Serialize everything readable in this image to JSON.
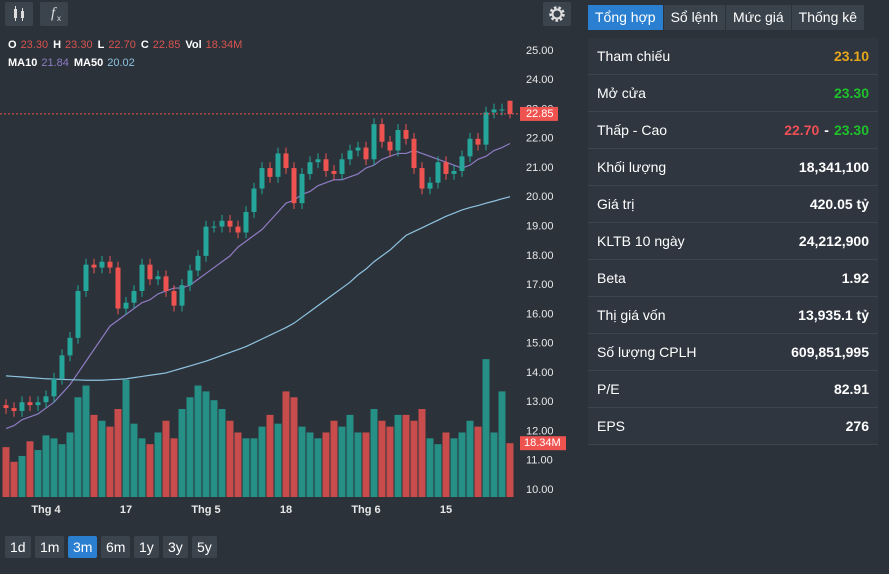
{
  "chart_data": {
    "type": "candlestick",
    "header": [
      {
        "label": "O",
        "value": "23.30"
      },
      {
        "label": "H",
        "value": "23.30"
      },
      {
        "label": "L",
        "value": "22.70"
      },
      {
        "label": "C",
        "value": "22.85"
      },
      {
        "label": "Vol",
        "value": "18.34M"
      }
    ],
    "categories": [
      null,
      null,
      null,
      null,
      null,
      "Thg 4",
      null,
      null,
      null,
      null,
      null,
      null,
      null,
      null,
      null,
      "17",
      null,
      null,
      null,
      null,
      null,
      null,
      null,
      null,
      null,
      "Thg 5",
      null,
      null,
      null,
      null,
      null,
      null,
      null,
      null,
      null,
      "18",
      null,
      null,
      null,
      null,
      null,
      null,
      null,
      null,
      null,
      "Thg 6",
      null,
      null,
      null,
      null,
      null,
      null,
      null,
      null,
      null,
      "15",
      null,
      null,
      null,
      null,
      null,
      null,
      null,
      null
    ],
    "open": [
      12.9,
      12.8,
      12.7,
      13.0,
      12.9,
      13.0,
      13.2,
      13.8,
      14.6,
      15.2,
      16.8,
      17.7,
      17.6,
      17.8,
      17.6,
      16.2,
      16.4,
      16.8,
      17.7,
      17.2,
      17.3,
      16.8,
      16.3,
      17.0,
      17.5,
      18.0,
      19.0,
      19.0,
      19.2,
      19.0,
      18.8,
      19.5,
      20.3,
      21.0,
      20.7,
      21.5,
      21.0,
      19.8,
      20.8,
      21.2,
      21.3,
      20.9,
      20.8,
      21.3,
      21.6,
      21.7,
      21.3,
      22.5,
      21.9,
      21.6,
      22.3,
      22.0,
      21.0,
      20.3,
      20.5,
      21.2,
      20.8,
      20.9,
      21.4,
      22.0,
      21.8,
      22.9,
      23.0,
      23.3
    ],
    "high": [
      13.1,
      13.0,
      13.2,
      13.2,
      13.2,
      13.4,
      14.0,
      14.8,
      15.4,
      17.0,
      17.9,
      17.9,
      18.0,
      18.0,
      17.8,
      16.6,
      17.0,
      17.9,
      17.9,
      17.5,
      17.5,
      17.0,
      17.2,
      17.7,
      18.2,
      19.2,
      19.2,
      19.4,
      19.4,
      19.2,
      19.7,
      20.5,
      21.2,
      21.2,
      21.7,
      21.7,
      21.2,
      21.0,
      21.4,
      21.5,
      21.5,
      21.1,
      21.5,
      21.8,
      21.9,
      21.9,
      22.7,
      22.7,
      22.1,
      22.5,
      22.5,
      22.2,
      21.2,
      20.7,
      21.4,
      21.4,
      21.1,
      21.6,
      22.2,
      22.2,
      23.1,
      23.2,
      23.2,
      23.3
    ],
    "low": [
      12.6,
      12.5,
      12.5,
      12.7,
      12.7,
      12.8,
      13.0,
      13.6,
      14.4,
      15.0,
      16.6,
      17.4,
      17.4,
      17.4,
      16.0,
      16.0,
      16.2,
      16.6,
      17.0,
      17.0,
      16.6,
      16.1,
      16.1,
      16.8,
      17.3,
      17.8,
      18.8,
      18.8,
      18.8,
      18.6,
      18.6,
      19.3,
      20.1,
      20.5,
      20.5,
      20.8,
      19.6,
      19.6,
      20.6,
      21.0,
      20.7,
      20.6,
      20.6,
      21.1,
      21.4,
      21.1,
      21.1,
      21.7,
      21.4,
      21.4,
      21.8,
      20.8,
      20.1,
      20.1,
      20.3,
      20.6,
      20.6,
      20.7,
      21.2,
      21.6,
      21.6,
      22.7,
      22.8,
      22.7
    ],
    "close": [
      12.8,
      12.7,
      13.0,
      12.9,
      13.0,
      13.2,
      13.8,
      14.6,
      15.2,
      16.8,
      17.7,
      17.6,
      17.8,
      17.6,
      16.2,
      16.4,
      16.8,
      17.7,
      17.2,
      17.3,
      16.8,
      16.3,
      17.0,
      17.5,
      18.0,
      19.0,
      19.0,
      19.2,
      19.0,
      18.8,
      19.5,
      20.3,
      21.0,
      20.7,
      21.5,
      21.0,
      19.8,
      20.8,
      21.2,
      21.3,
      20.9,
      20.8,
      21.3,
      21.6,
      21.7,
      21.3,
      22.5,
      21.9,
      21.6,
      22.3,
      22.0,
      21.0,
      20.3,
      20.5,
      21.2,
      20.8,
      20.9,
      21.4,
      22.0,
      21.8,
      22.9,
      23.0,
      23.0,
      22.85
    ],
    "volume": [
      17000000,
      12000000,
      14000000,
      19000000,
      16000000,
      21000000,
      20000000,
      18000000,
      22000000,
      34000000,
      38000000,
      28000000,
      26000000,
      24000000,
      30000000,
      40000000,
      25000000,
      20000000,
      18000000,
      22000000,
      26000000,
      20000000,
      30000000,
      34000000,
      38000000,
      36000000,
      33000000,
      30000000,
      26000000,
      22000000,
      20000000,
      20000000,
      24000000,
      28000000,
      25000000,
      36000000,
      34000000,
      24000000,
      22000000,
      20000000,
      22000000,
      26000000,
      24000000,
      28000000,
      22000000,
      22000000,
      30000000,
      26000000,
      24000000,
      28000000,
      28000000,
      26000000,
      30000000,
      20000000,
      18000000,
      22000000,
      20000000,
      22000000,
      26000000,
      24000000,
      47000000,
      22000000,
      36000000,
      18341100
    ],
    "volume_lim": [
      0,
      150000000
    ],
    "series": [
      {
        "name": "MA10",
        "color": "#8e7cc3",
        "values": [
          12.1,
          12.2,
          12.4,
          12.5,
          12.6,
          12.8,
          13.0,
          13.3,
          13.6,
          14.0,
          14.4,
          14.8,
          15.2,
          15.6,
          15.8,
          16.0,
          16.2,
          16.4,
          16.5,
          16.7,
          16.8,
          16.9,
          16.9,
          17.0,
          17.2,
          17.4,
          17.6,
          17.8,
          18.0,
          18.3,
          18.5,
          18.7,
          18.9,
          19.2,
          19.5,
          19.8,
          19.9,
          20.1,
          20.2,
          20.4,
          20.5,
          20.6,
          20.6,
          20.7,
          20.8,
          21.0,
          21.1,
          21.3,
          21.4,
          21.5,
          21.5,
          21.6,
          21.5,
          21.4,
          21.3,
          21.2,
          21.1,
          21.0,
          21.1,
          21.3,
          21.4,
          21.6,
          21.7,
          21.84
        ]
      },
      {
        "name": "MA50",
        "color": "#8fc3e0",
        "values": [
          13.9,
          13.88,
          13.86,
          13.84,
          13.82,
          13.8,
          13.79,
          13.78,
          13.77,
          13.76,
          13.75,
          13.75,
          13.75,
          13.77,
          13.78,
          13.8,
          13.84,
          13.88,
          13.92,
          13.96,
          14.0,
          14.08,
          14.16,
          14.24,
          14.32,
          14.4,
          14.5,
          14.6,
          14.7,
          14.8,
          14.9,
          15.03,
          15.16,
          15.29,
          15.42,
          15.55,
          15.7,
          15.9,
          16.1,
          16.3,
          16.5,
          16.7,
          16.9,
          17.1,
          17.35,
          17.55,
          17.8,
          18.0,
          18.2,
          18.45,
          18.7,
          18.83,
          18.96,
          19.09,
          19.22,
          19.35,
          19.46,
          19.57,
          19.65,
          19.72,
          19.8,
          19.87,
          19.95,
          20.02
        ]
      }
    ],
    "up_color": "#26a69a",
    "down_color": "#ef5350",
    "ylim": [
      10,
      25
    ],
    "yticks": [
      {
        "value": 10,
        "label": "10.00"
      },
      {
        "value": 11,
        "label": "11.00"
      },
      {
        "value": 12,
        "label": "12.00"
      },
      {
        "value": 13,
        "label": "13.00"
      },
      {
        "value": 14,
        "label": "14.00"
      },
      {
        "value": 15,
        "label": "15.00"
      },
      {
        "value": 16,
        "label": "16.00"
      },
      {
        "value": 17,
        "label": "17.00"
      },
      {
        "value": 18,
        "label": "18.00"
      },
      {
        "value": 19,
        "label": "19.00"
      },
      {
        "value": 20,
        "label": "20.00"
      },
      {
        "value": 21,
        "label": "21.00"
      },
      {
        "value": 22,
        "label": "22.00"
      },
      {
        "value": 23,
        "label": "23.00"
      },
      {
        "value": 24,
        "label": "24.00"
      },
      {
        "value": 25,
        "label": "25.00"
      }
    ],
    "grid": false
  },
  "ranges": {
    "items": [
      "1d",
      "1m",
      "3m",
      "6m",
      "1y",
      "3y",
      "5y"
    ],
    "active": 2
  },
  "tabs": {
    "items": [
      "Tổng hợp",
      "Sổ lệnh",
      "Mức giá",
      "Thống kê"
    ],
    "active": 0
  },
  "panel": {
    "rows": [
      {
        "label": "Tham chiếu",
        "value": "23.10",
        "color": "#e5a61c"
      },
      {
        "label": "Mở cửa",
        "value": "23.30",
        "color": "#1fc12b"
      },
      {
        "label": "Thấp - Cao",
        "low": "22.70",
        "separator": "-",
        "high": "23.30",
        "low_color": "#ef4f55",
        "high_color": "#1fc12b"
      },
      {
        "label": "Khối lượng",
        "value": "18,341,100",
        "color": "#ffffff"
      },
      {
        "label": "Giá trị",
        "value": "420.05 tỷ",
        "color": "#ffffff"
      },
      {
        "label": "KLTB 10 ngày",
        "value": "24,212,900",
        "color": "#ffffff"
      },
      {
        "label": "Beta",
        "value": "1.92",
        "color": "#ffffff"
      },
      {
        "label": "Thị giá vốn",
        "value": "13,935.1 tỷ",
        "color": "#ffffff"
      },
      {
        "label": "Số lượng CPLH",
        "value": "609,851,995",
        "color": "#ffffff"
      },
      {
        "label": "P/E",
        "value": "82.91",
        "color": "#ffffff"
      },
      {
        "label": "EPS",
        "value": "276",
        "color": "#ffffff"
      }
    ]
  }
}
